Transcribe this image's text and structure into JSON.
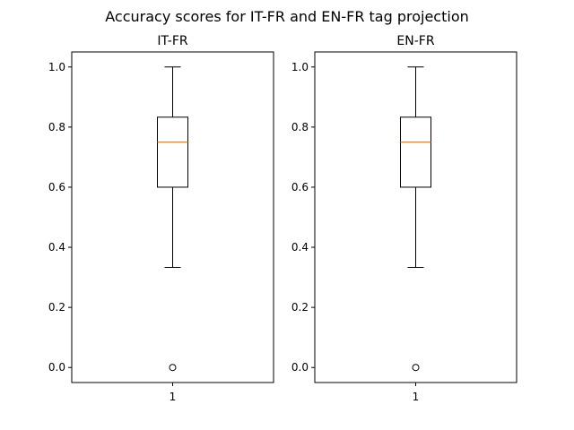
{
  "figure": {
    "suptitle": "Accuracy scores for IT-FR and EN-FR tag projection"
  },
  "chart_data": [
    {
      "type": "boxplot",
      "title": "IT-FR",
      "xlabel": "",
      "ylabel": "",
      "categories": [
        "1"
      ],
      "ylim": [
        -0.05,
        1.05
      ],
      "yticks": [
        0.0,
        0.2,
        0.4,
        0.6,
        0.8,
        1.0
      ],
      "ytick_labels": [
        "0.0",
        "0.2",
        "0.4",
        "0.6",
        "0.8",
        "1.0"
      ],
      "boxes": [
        {
          "whisker_low": 0.333,
          "q1": 0.6,
          "median": 0.75,
          "q3": 0.833,
          "whisker_high": 1.0,
          "outliers": [
            0.0
          ]
        }
      ],
      "colors": {
        "box": "#000000",
        "median": "#ff7f0e"
      },
      "grid": false
    },
    {
      "type": "boxplot",
      "title": "EN-FR",
      "xlabel": "",
      "ylabel": "",
      "categories": [
        "1"
      ],
      "ylim": [
        -0.05,
        1.05
      ],
      "yticks": [
        0.0,
        0.2,
        0.4,
        0.6,
        0.8,
        1.0
      ],
      "ytick_labels": [
        "0.0",
        "0.2",
        "0.4",
        "0.6",
        "0.8",
        "1.0"
      ],
      "boxes": [
        {
          "whisker_low": 0.333,
          "q1": 0.6,
          "median": 0.75,
          "q3": 0.833,
          "whisker_high": 1.0,
          "outliers": [
            0.0
          ]
        }
      ],
      "colors": {
        "box": "#000000",
        "median": "#ff7f0e"
      },
      "grid": false
    }
  ]
}
